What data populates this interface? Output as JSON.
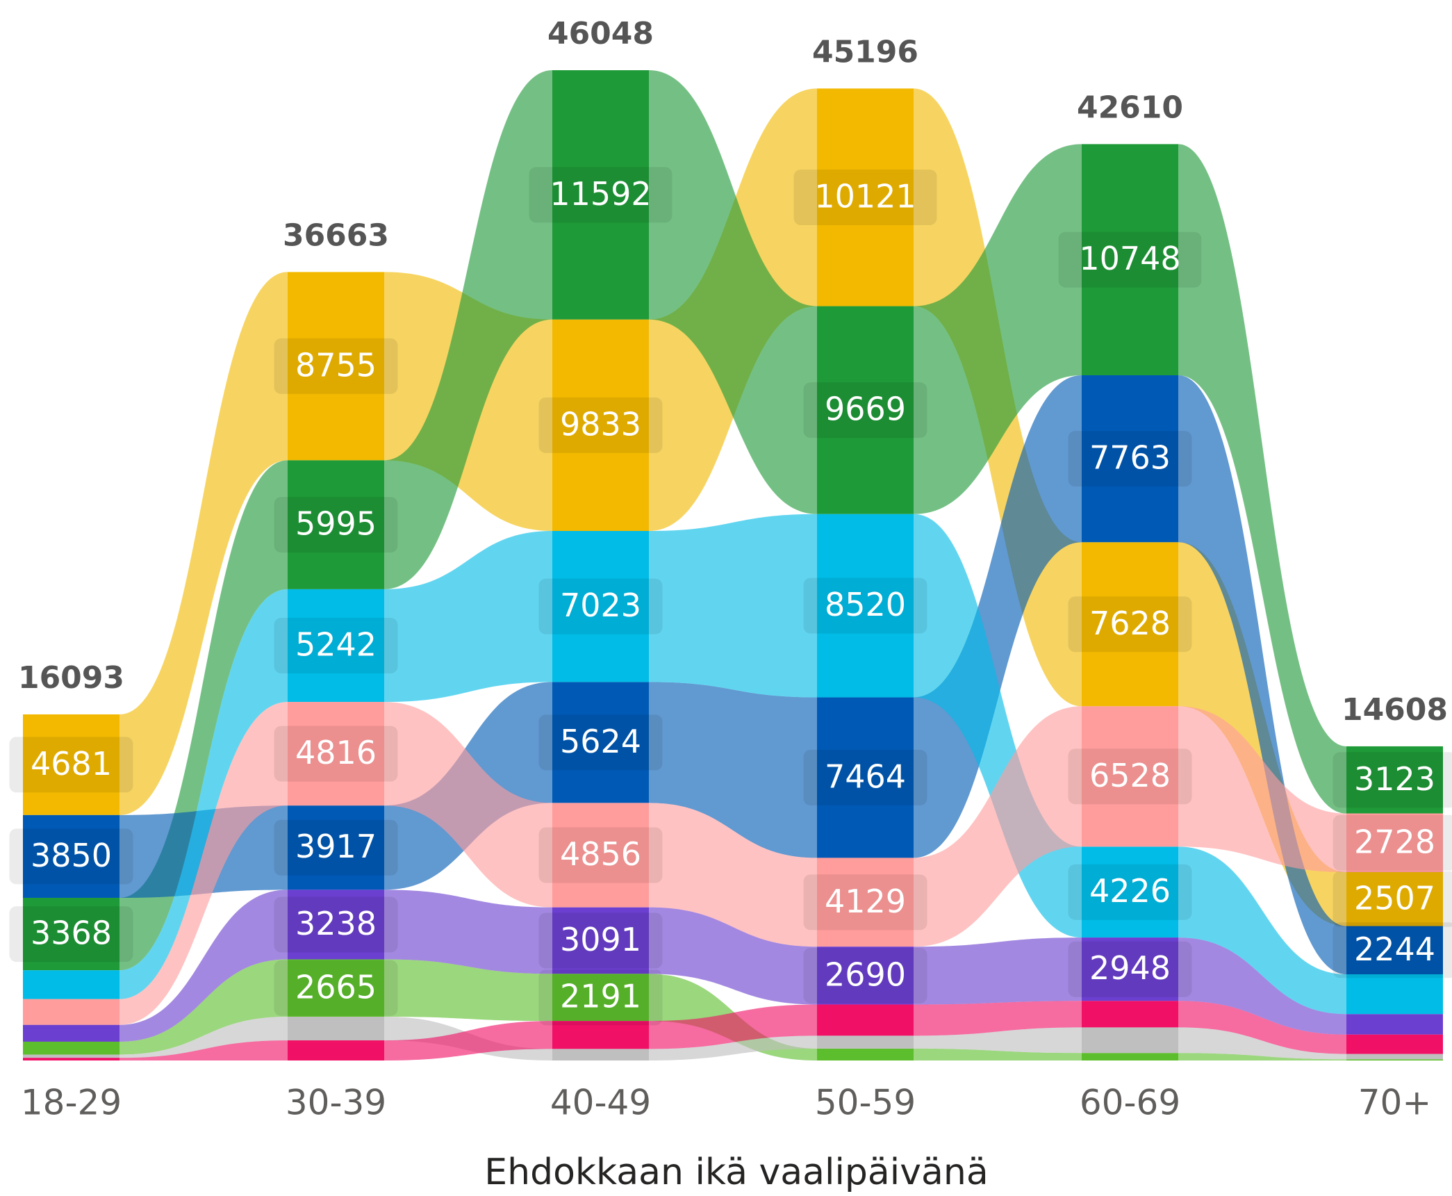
{
  "chart_data": {
    "type": "ribbon",
    "x_label": "Ehdokkaan ikä vaalipäivänä",
    "categories": [
      "18-29",
      "30-39",
      "40-49",
      "50-59",
      "60-69",
      "70+"
    ],
    "totals": [
      16093,
      36663,
      46048,
      45196,
      42610,
      14608
    ],
    "series": [
      {
        "color": "#F2B900",
        "values": [
          4681,
          8755,
          9833,
          10121,
          7628,
          2507
        ]
      },
      {
        "color": "#1F9A38",
        "values": [
          3368,
          5995,
          11592,
          9669,
          10748,
          3123
        ]
      },
      {
        "color": "#005AB5",
        "values": [
          3850,
          3917,
          5624,
          7464,
          7763,
          2244
        ]
      },
      {
        "color": "#00BCE6",
        "values": [
          1340,
          5242,
          7023,
          8520,
          4226,
          1850
        ]
      },
      {
        "color": "#FF9C9C",
        "values": [
          1200,
          4816,
          4856,
          4129,
          6528,
          2728
        ]
      },
      {
        "color": "#6B3FCF",
        "values": [
          780,
          3238,
          3091,
          2690,
          2948,
          950
        ]
      },
      {
        "color": "#5DBE2D",
        "values": [
          600,
          2665,
          2191,
          553,
          349,
          56
        ]
      },
      {
        "color": "#BFBFBF",
        "values": [
          150,
          1100,
          538,
          600,
          1190,
          250
        ]
      },
      {
        "color": "#F01066",
        "values": [
          124,
          935,
          1300,
          1450,
          1230,
          900
        ]
      }
    ]
  }
}
